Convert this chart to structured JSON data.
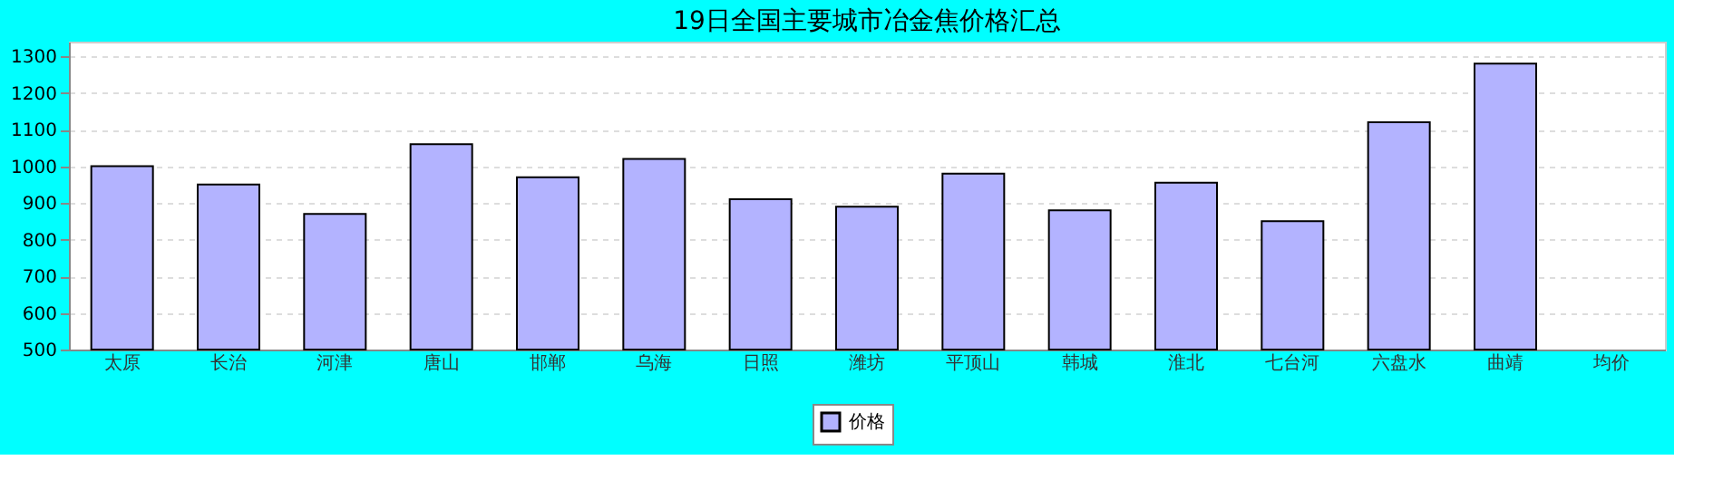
{
  "chart_data": {
    "type": "bar",
    "title": "19日全国主要城市冶金焦价格汇总",
    "categories": [
      "太原",
      "长治",
      "河津",
      "唐山",
      "邯郸",
      "乌海",
      "日照",
      "潍坊",
      "平顶山",
      "韩城",
      "淮北",
      "七台河",
      "六盘水",
      "曲靖",
      "均价"
    ],
    "series": [
      {
        "name": "价格",
        "color": "#b3b3ff",
        "values": [
          1000,
          950,
          870,
          1060,
          970,
          1020,
          910,
          890,
          980,
          880,
          955,
          850,
          1120,
          1280,
          null
        ]
      }
    ],
    "ylim": [
      500,
      1340
    ],
    "yticks": [
      500,
      600,
      700,
      800,
      900,
      1000,
      1100,
      1200,
      1300
    ],
    "grid": "y",
    "legend": "bottom"
  }
}
